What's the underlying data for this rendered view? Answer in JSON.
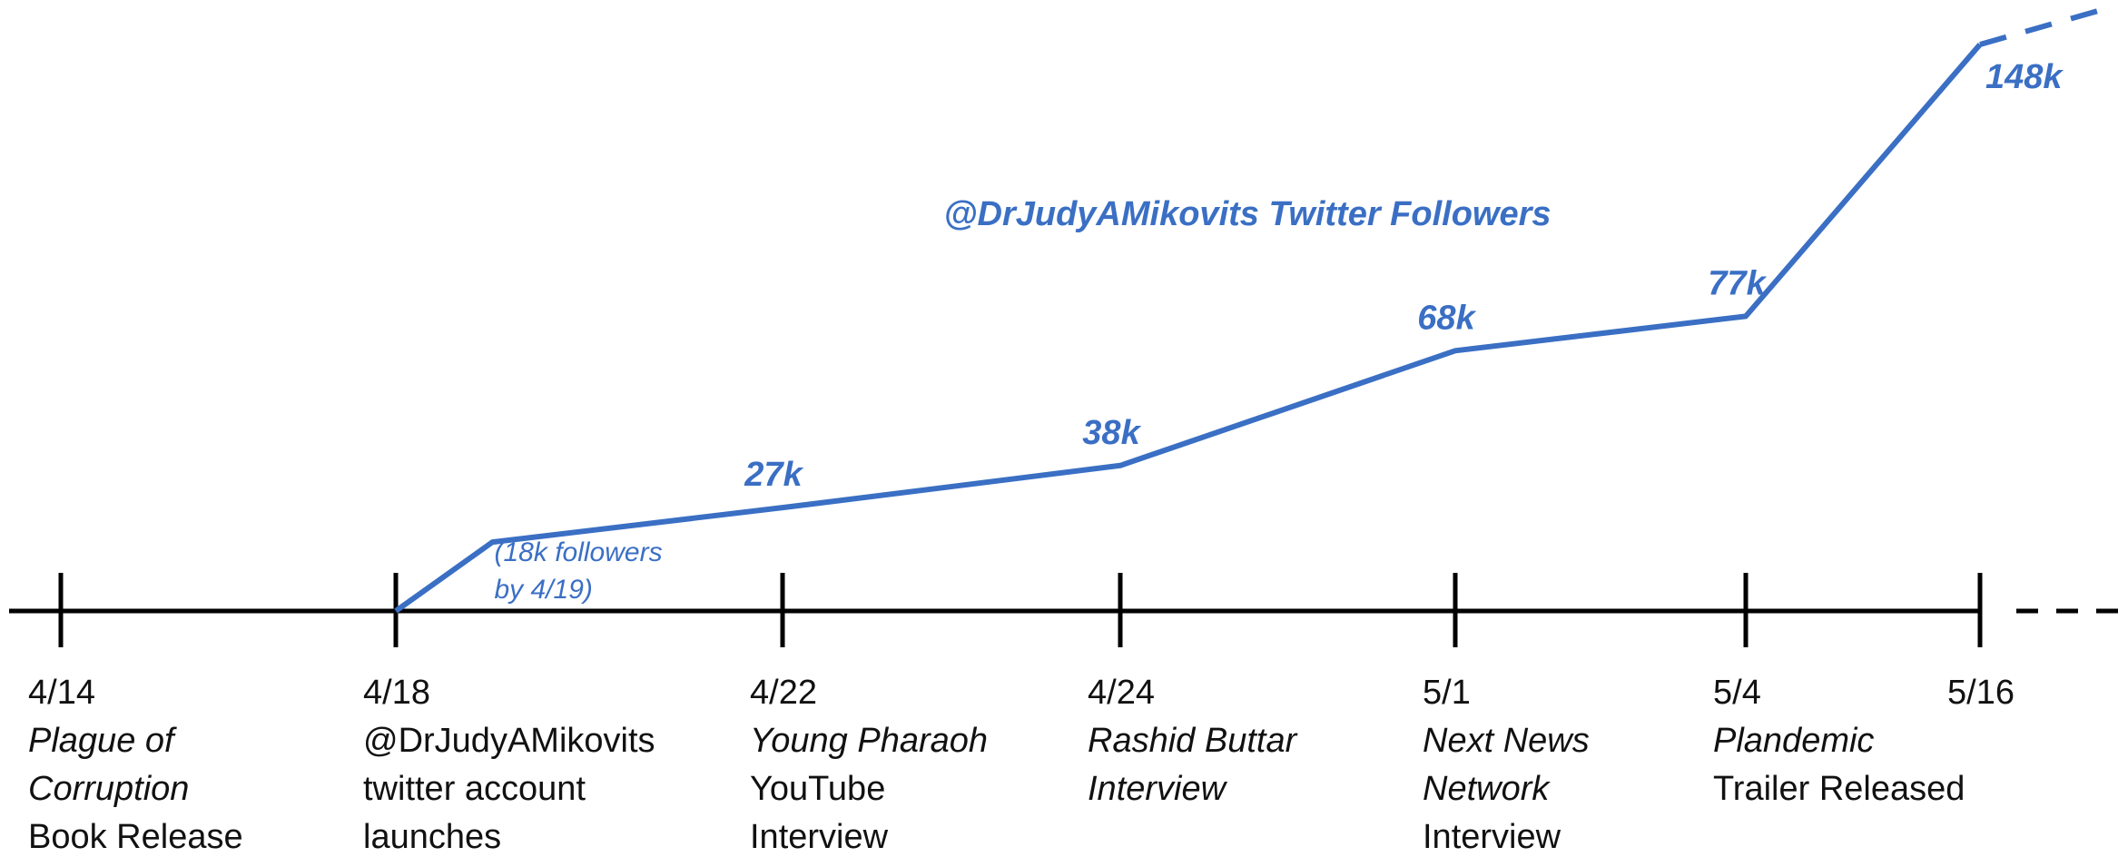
{
  "chart_data": {
    "type": "line",
    "title": "@DrJudyAMikovits Twitter Followers",
    "color": "#3a6fc4",
    "events": [
      {
        "date": "4/14",
        "lines": [
          {
            "text": "Plague of",
            "italic": true
          },
          {
            "text": "Corruption",
            "italic": true
          },
          {
            "text": "Book Release",
            "italic": false
          }
        ]
      },
      {
        "date": "4/18",
        "lines": [
          {
            "text": "@DrJudyAMikovits",
            "italic": false
          },
          {
            "text": "twitter account",
            "italic": false
          },
          {
            "text": "launches",
            "italic": false
          }
        ]
      },
      {
        "date": "4/22",
        "lines": [
          {
            "text": "Young Pharaoh",
            "italic": true
          },
          {
            "text": "YouTube",
            "italic": false
          },
          {
            "text": "Interview",
            "italic": false
          }
        ]
      },
      {
        "date": "4/24",
        "lines": [
          {
            "text": "Rashid Buttar",
            "italic": true
          },
          {
            "text": "Interview",
            "italic": true
          }
        ]
      },
      {
        "date": "5/1",
        "lines": [
          {
            "text": "Next News",
            "italic": true
          },
          {
            "text": "Network",
            "italic": true
          },
          {
            "text": "Interview",
            "italic": false
          }
        ]
      },
      {
        "date": "5/4",
        "lines": [
          {
            "text": "Plandemic",
            "italic": true
          },
          {
            "text": "Trailer Released",
            "italic": false
          }
        ]
      },
      {
        "date": "5/16",
        "lines": []
      }
    ],
    "series": [
      {
        "name": "@DrJudyAMikovits Twitter Followers",
        "x": [
          "4/18",
          "4/19",
          "4/22",
          "4/24",
          "5/1",
          "5/4",
          "5/16"
        ],
        "values": [
          0,
          18,
          27,
          38,
          68,
          77,
          148
        ],
        "value_labels": [
          null,
          null,
          "27k",
          "38k",
          "68k",
          "77k",
          "148k"
        ]
      }
    ],
    "annotation": [
      "(18k followers",
      "by 4/19)"
    ]
  }
}
